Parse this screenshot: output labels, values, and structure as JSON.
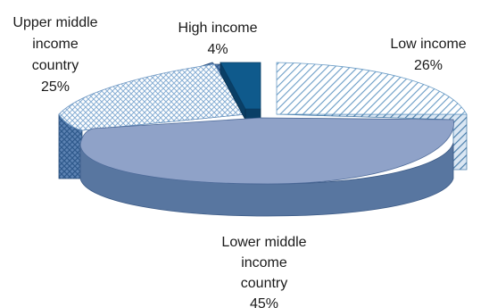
{
  "chart_data": {
    "type": "pie",
    "style": "3d-exploded",
    "title": "",
    "slices": [
      {
        "label": "Low income",
        "value": 26,
        "display": "26%",
        "color": "#8fb3d3",
        "pattern": "diagonal-hatch"
      },
      {
        "label": "Lower middle income country",
        "value": 45,
        "display": "45%",
        "color": "#8fa2c8",
        "pattern": "solid"
      },
      {
        "label": "Upper middle income country",
        "value": 25,
        "display": "25%",
        "color": "#9ab8d8",
        "pattern": "crosshatch"
      },
      {
        "label": "High income",
        "value": 4,
        "display": "4%",
        "color": "#0f5a8c",
        "pattern": "solid"
      }
    ],
    "labels": {
      "low": [
        "Low income",
        "26%"
      ],
      "lower_middle": [
        "Lower middle",
        "income",
        "country",
        "45%"
      ],
      "upper_middle": [
        "Upper middle",
        "income",
        "country",
        "25%"
      ],
      "high": [
        "High income",
        "4%"
      ]
    }
  }
}
